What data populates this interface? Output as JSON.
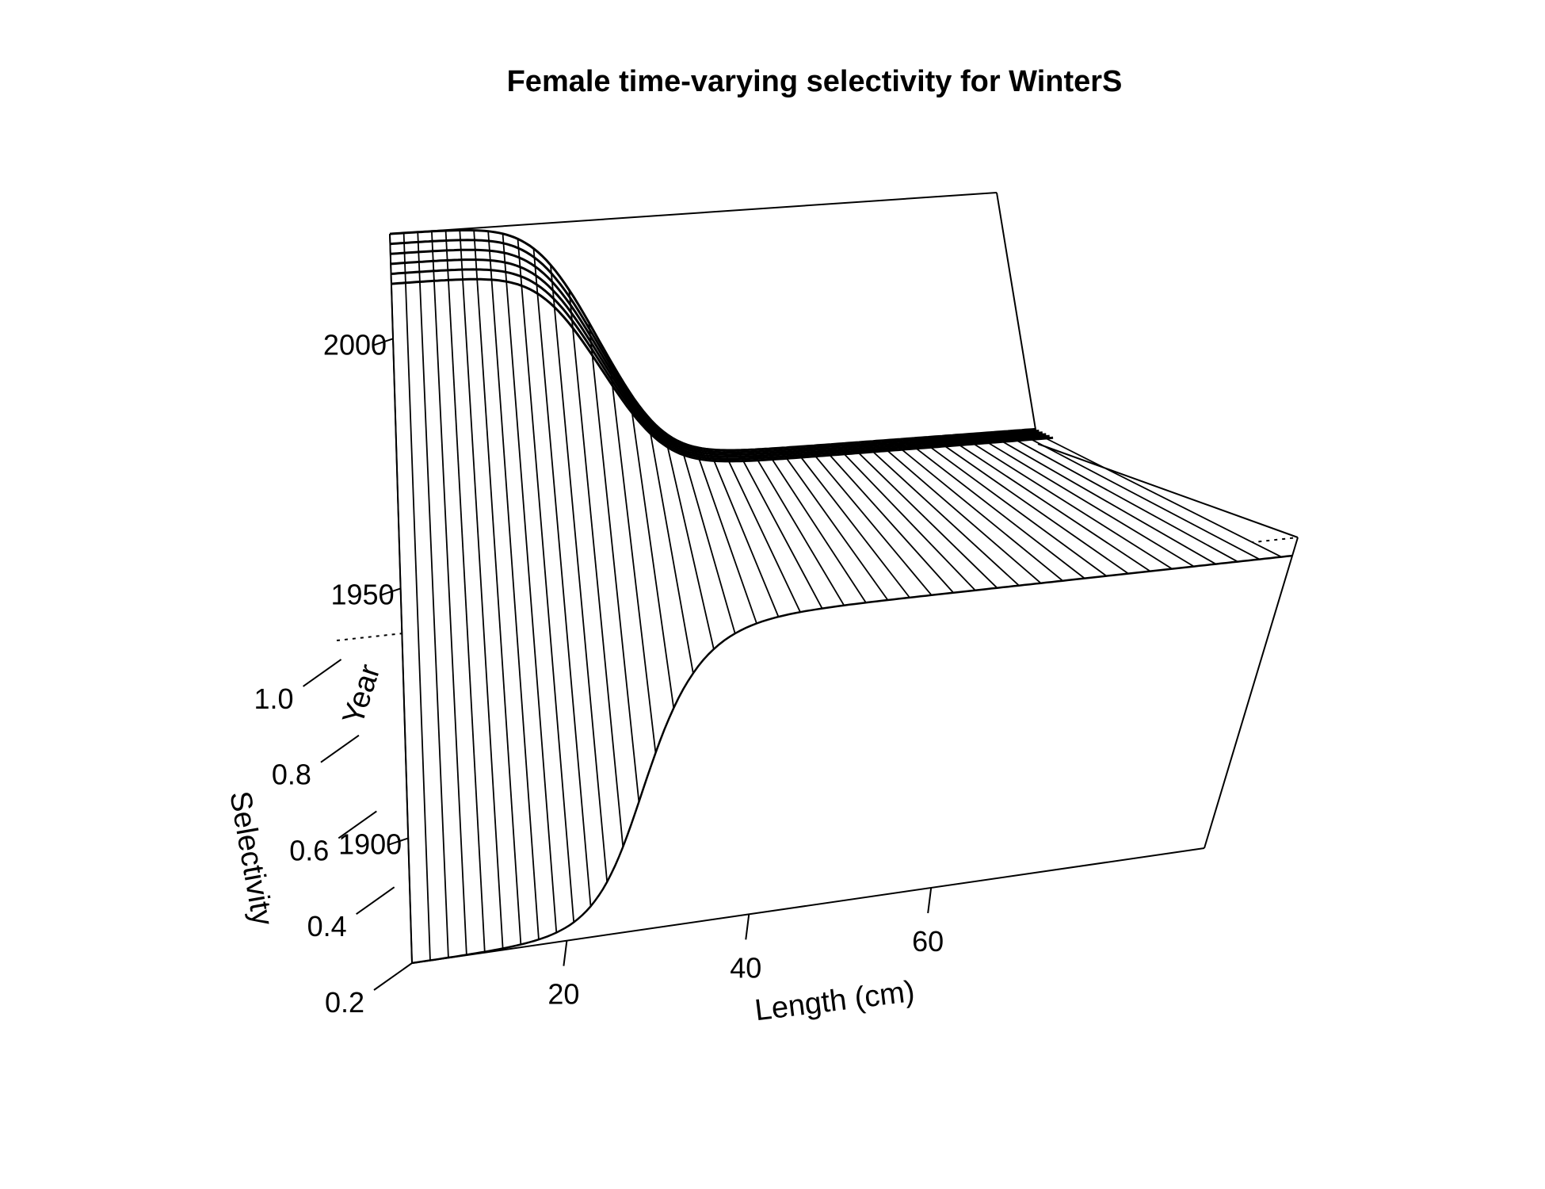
{
  "chart_data": {
    "type": "surface",
    "title": "Female time-varying selectivity for WinterS",
    "xlabel": "Length (cm)",
    "ylabel": "Year",
    "zlabel": "Selectivity",
    "x_ticks": [
      "20",
      "40",
      "60"
    ],
    "y_ticks": [
      "1900",
      "1950",
      "2000"
    ],
    "z_ticks": [
      "0.2",
      "0.4",
      "0.6",
      "0.8",
      "1.0"
    ],
    "xlim": [
      3,
      90
    ],
    "ylim": [
      1875,
      2021
    ],
    "zlim": [
      0.2,
      1.05
    ],
    "length_bins": [
      3,
      5,
      7,
      9,
      11,
      13,
      15,
      17,
      19,
      21,
      23,
      25,
      27,
      29,
      31,
      33,
      35,
      37,
      39,
      41,
      43,
      45,
      47,
      49,
      51,
      53,
      55,
      57,
      59,
      61,
      63,
      65,
      67,
      69,
      71,
      73,
      75,
      77,
      79,
      81,
      83,
      85,
      87,
      89
    ],
    "years": [
      1875,
      2011,
      2013,
      2015,
      2017,
      2019,
      2021
    ],
    "selectivity_model": {
      "description_values": {
        "min_selectivity": 0.2,
        "max_selectivity": 1.0,
        "inflection_length_cm": 30,
        "slope_width_cm": 3.2
      }
    },
    "grid": false,
    "legend": "none"
  }
}
